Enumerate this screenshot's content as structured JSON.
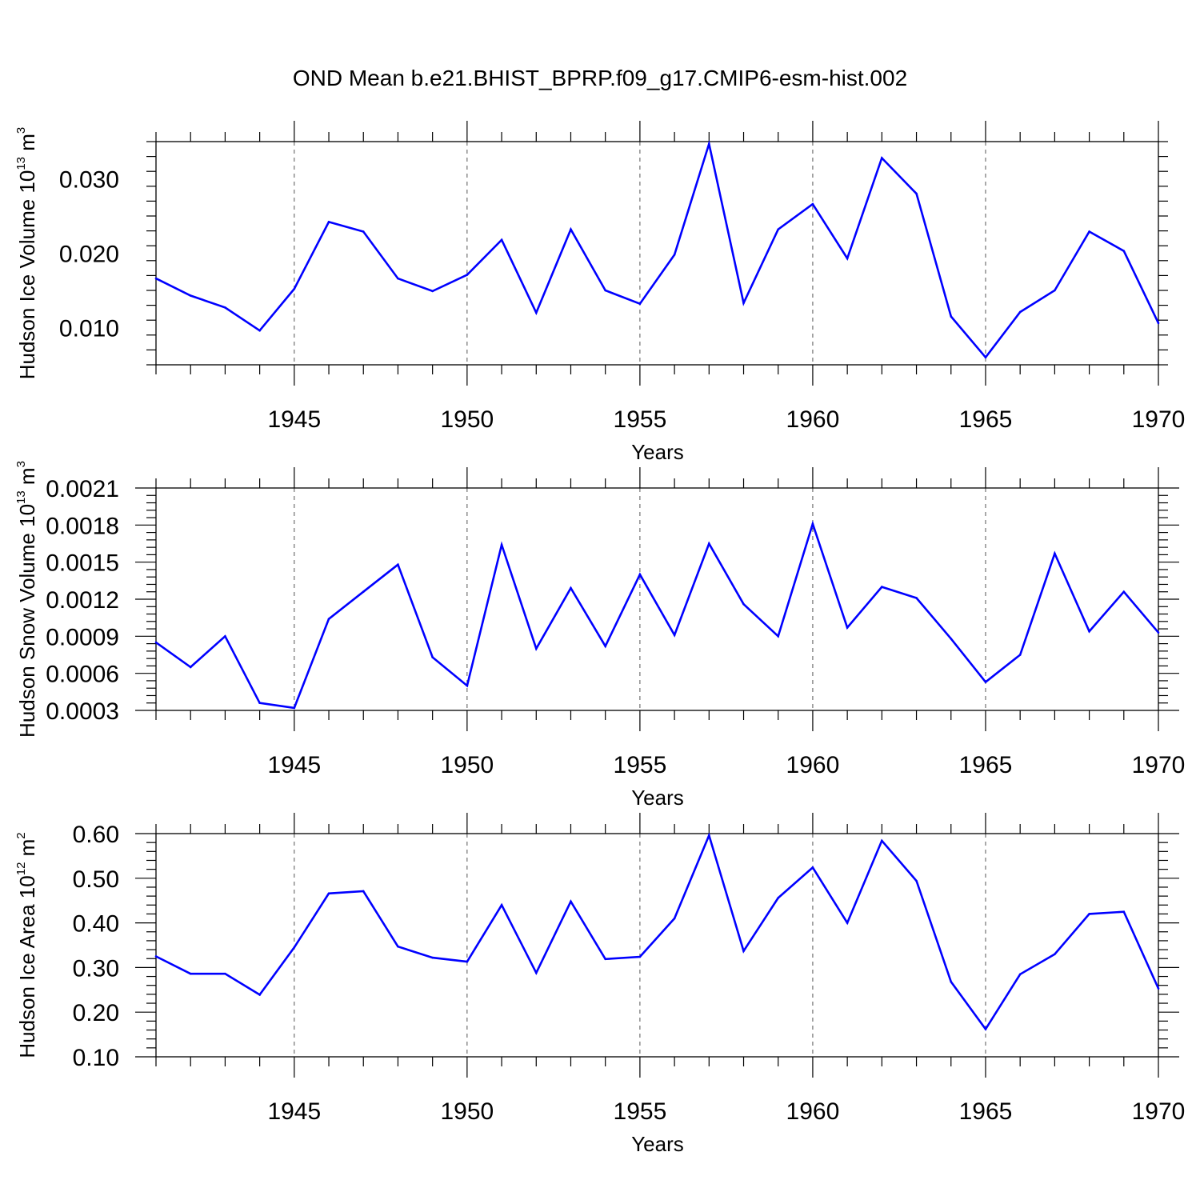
{
  "title": "OND Mean b.e21.BHIST_BPRP.f09_g17.CMIP6-esm-hist.002",
  "colors": {
    "line": "#0000ff",
    "axis": "#000000",
    "grid": "#555555"
  },
  "chart_data": [
    {
      "type": "line",
      "ylabel": "Hudson Ice Volume 10",
      "ylabel_exp": "13",
      "ylabel_unit": " m",
      "ylabel_unit_exp": "3",
      "xlabel": "Years",
      "xlim": [
        1941,
        1970
      ],
      "ylim": [
        0.005,
        0.035
      ],
      "yticks": [
        0.01,
        0.02,
        0.03
      ],
      "ytick_labels": [
        "0.010",
        "0.020",
        "0.030"
      ],
      "xticks": [
        1945,
        1950,
        1955,
        1960,
        1965,
        1970
      ],
      "xtick_labels": [
        "1945",
        "1950",
        "1955",
        "1960",
        "1965",
        "1970"
      ],
      "x": [
        1941,
        1942,
        1943,
        1944,
        1945,
        1946,
        1947,
        1948,
        1949,
        1950,
        1951,
        1952,
        1953,
        1954,
        1955,
        1956,
        1957,
        1958,
        1959,
        1960,
        1961,
        1962,
        1963,
        1964,
        1965,
        1966,
        1967,
        1968,
        1969,
        1970
      ],
      "values": [
        0.0166,
        0.0143,
        0.0127,
        0.0096,
        0.0152,
        0.0242,
        0.0229,
        0.0166,
        0.0149,
        0.0171,
        0.0218,
        0.012,
        0.0232,
        0.015,
        0.0132,
        0.0198,
        0.0347,
        0.0133,
        0.0232,
        0.0266,
        0.0193,
        0.0328,
        0.028,
        0.0115,
        0.006,
        0.0121,
        0.015,
        0.0229,
        0.0203,
        0.0106
      ],
      "grid": "vertical dashed at labeled years"
    },
    {
      "type": "line",
      "ylabel": "Hudson Snow Volume 10",
      "ylabel_exp": "13",
      "ylabel_unit": " m",
      "ylabel_unit_exp": "3",
      "xlabel": "Years",
      "xlim": [
        1941,
        1970
      ],
      "ylim": [
        0.0003,
        0.0021
      ],
      "yticks": [
        0.0003,
        0.0006,
        0.0009,
        0.0012,
        0.0015,
        0.0018,
        0.0021
      ],
      "ytick_labels": [
        "0.0003",
        "0.0006",
        "0.0009",
        "0.0012",
        "0.0015",
        "0.0018",
        "0.0021"
      ],
      "xticks": [
        1945,
        1950,
        1955,
        1960,
        1965,
        1970
      ],
      "xtick_labels": [
        "1945",
        "1950",
        "1955",
        "1960",
        "1965",
        "1970"
      ],
      "x": [
        1941,
        1942,
        1943,
        1944,
        1945,
        1946,
        1947,
        1948,
        1949,
        1950,
        1951,
        1952,
        1953,
        1954,
        1955,
        1956,
        1957,
        1958,
        1959,
        1960,
        1961,
        1962,
        1963,
        1964,
        1965,
        1966,
        1967,
        1968,
        1969,
        1970
      ],
      "values": [
        0.00085,
        0.00065,
        0.0009,
        0.00036,
        0.00032,
        0.00104,
        0.00126,
        0.00148,
        0.00073,
        0.0005,
        0.00164,
        0.0008,
        0.00129,
        0.00082,
        0.0014,
        0.00091,
        0.00165,
        0.00116,
        0.0009,
        0.00181,
        0.00097,
        0.0013,
        0.00121,
        0.00088,
        0.00053,
        0.00075,
        0.00157,
        0.00094,
        0.00126,
        0.00093
      ],
      "grid": "vertical dashed at labeled years"
    },
    {
      "type": "line",
      "ylabel": "Hudson Ice Area 10",
      "ylabel_exp": "12",
      "ylabel_unit": " m",
      "ylabel_unit_exp": "2",
      "xlabel": "Years",
      "xlim": [
        1941,
        1970
      ],
      "ylim": [
        0.1,
        0.6
      ],
      "yticks": [
        0.1,
        0.2,
        0.3,
        0.4,
        0.5,
        0.6
      ],
      "ytick_labels": [
        "0.10",
        "0.20",
        "0.30",
        "0.40",
        "0.50",
        "0.60"
      ],
      "xticks": [
        1945,
        1950,
        1955,
        1960,
        1965,
        1970
      ],
      "xtick_labels": [
        "1945",
        "1950",
        "1955",
        "1960",
        "1965",
        "1970"
      ],
      "x": [
        1941,
        1942,
        1943,
        1944,
        1945,
        1946,
        1947,
        1948,
        1949,
        1950,
        1951,
        1952,
        1953,
        1954,
        1955,
        1956,
        1957,
        1958,
        1959,
        1960,
        1961,
        1962,
        1963,
        1964,
        1965,
        1966,
        1967,
        1968,
        1969,
        1970
      ],
      "values": [
        0.325,
        0.286,
        0.286,
        0.239,
        0.345,
        0.466,
        0.471,
        0.347,
        0.322,
        0.313,
        0.44,
        0.288,
        0.448,
        0.319,
        0.324,
        0.41,
        0.596,
        0.337,
        0.456,
        0.524,
        0.4,
        0.584,
        0.494,
        0.268,
        0.162,
        0.285,
        0.33,
        0.42,
        0.425,
        0.253
      ],
      "grid": "vertical dashed at labeled years"
    }
  ]
}
